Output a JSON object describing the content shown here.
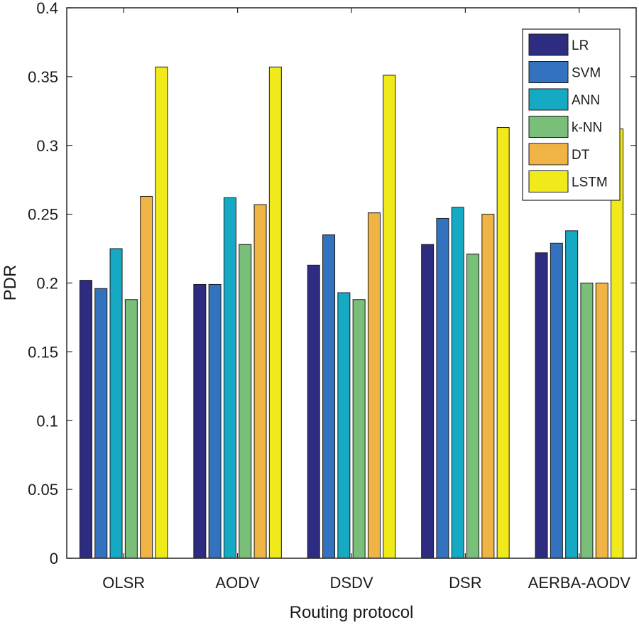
{
  "chart_data": {
    "type": "bar",
    "title": "",
    "xlabel": "Routing protocol",
    "ylabel": "PDR",
    "ylim": [
      0,
      0.4
    ],
    "yticks": [
      "0",
      "0.05",
      "0.1",
      "0.15",
      "0.2",
      "0.25",
      "0.3",
      "0.35",
      "0.4"
    ],
    "yticks_values": [
      0,
      0.05,
      0.1,
      0.15,
      0.2,
      0.25,
      0.3,
      0.35,
      0.4
    ],
    "grid": false,
    "legend_position": "top-right",
    "categories": [
      "OLSR",
      "AODV",
      "DSDV",
      "DSR",
      "AERBA-AODV"
    ],
    "series": [
      {
        "name": "LR",
        "color": "#2e2c80",
        "values": [
          0.202,
          0.199,
          0.213,
          0.228,
          0.222
        ]
      },
      {
        "name": "SVM",
        "color": "#3272bf",
        "values": [
          0.196,
          0.199,
          0.235,
          0.247,
          0.229
        ]
      },
      {
        "name": "ANN",
        "color": "#16a9c4",
        "values": [
          0.225,
          0.262,
          0.193,
          0.255,
          0.238
        ]
      },
      {
        "name": "k-NN",
        "color": "#79bf79",
        "values": [
          0.188,
          0.228,
          0.188,
          0.221,
          0.2
        ]
      },
      {
        "name": "DT",
        "color": "#f0b446",
        "values": [
          0.263,
          0.257,
          0.251,
          0.25,
          0.2
        ]
      },
      {
        "name": "LSTM",
        "color": "#f1ea1a",
        "values": [
          0.357,
          0.357,
          0.351,
          0.313,
          0.312
        ]
      }
    ]
  }
}
